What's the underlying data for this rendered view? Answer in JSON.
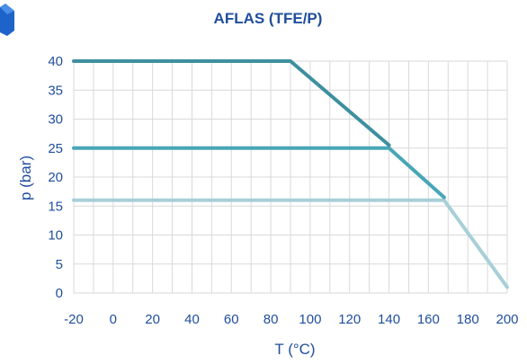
{
  "chart_data": {
    "type": "line",
    "title": "AFLAS (TFE/P)",
    "xlabel": "T (°C)",
    "ylabel": "p (bar)",
    "xlim": [
      -20,
      200
    ],
    "ylim": [
      0,
      40
    ],
    "x_ticks": [
      -20,
      0,
      20,
      40,
      60,
      80,
      100,
      120,
      140,
      160,
      180,
      200
    ],
    "y_ticks": [
      0,
      5,
      10,
      15,
      20,
      25,
      30,
      35,
      40
    ],
    "grid": true,
    "series": [
      {
        "color": "#3e8f9f",
        "x": [
          -20,
          90,
          140
        ],
        "y": [
          40,
          40,
          25.5
        ]
      },
      {
        "color": "#47a6b7",
        "x": [
          -20,
          140,
          168
        ],
        "y": [
          25,
          25,
          16.5
        ]
      },
      {
        "color": "#a8cfd8",
        "x": [
          -20,
          168,
          200
        ],
        "y": [
          16,
          16,
          1
        ]
      }
    ]
  }
}
